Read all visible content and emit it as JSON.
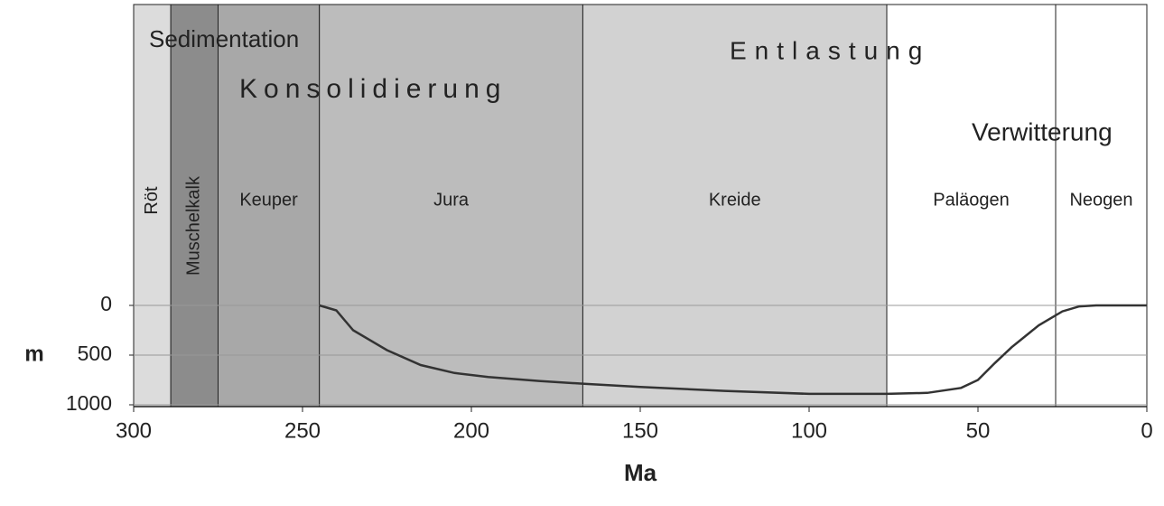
{
  "chart_data": {
    "type": "line",
    "annotations": [
      "Sedimentation",
      "Konsolidierung",
      "Entlastung",
      "Verwitterung"
    ],
    "periods": [
      {
        "name": "Röt",
        "start": 300,
        "end": 289,
        "color": "#dcdcdc"
      },
      {
        "name": "Muschelkalk",
        "start": 289,
        "end": 275,
        "color": "#8c8c8c"
      },
      {
        "name": "Keuper",
        "start": 275,
        "end": 245,
        "color": "#a8a8a8"
      },
      {
        "name": "Jura",
        "start": 245,
        "end": 167,
        "color": "#bcbcbc"
      },
      {
        "name": "Kreide",
        "start": 167,
        "end": 77,
        "color": "#d2d2d2"
      },
      {
        "name": "Paläogen",
        "start": 77,
        "end": 27,
        "color": "#ffffff"
      },
      {
        "name": "Neogen",
        "start": 27,
        "end": 0,
        "color": "#ffffff"
      }
    ],
    "series": [
      {
        "color": "#333333",
        "x": [
          245,
          240,
          235,
          225,
          215,
          205,
          195,
          180,
          166,
          150,
          125,
          100,
          77,
          65,
          55,
          50,
          45,
          40,
          32,
          25,
          20,
          15,
          0
        ],
        "values": [
          0,
          50,
          250,
          450,
          600,
          680,
          720,
          760,
          790,
          820,
          860,
          890,
          890,
          880,
          830,
          750,
          580,
          420,
          200,
          60,
          10,
          0,
          0
        ]
      }
    ],
    "xlabel": "Ma",
    "ylabel": "m",
    "xlim": [
      300,
      0
    ],
    "xticks": [
      300,
      250,
      200,
      150,
      100,
      50,
      0
    ],
    "ylim": [
      0,
      1000
    ],
    "yticks": [
      0,
      500,
      1000
    ],
    "y_inverted": true,
    "grid": true
  }
}
